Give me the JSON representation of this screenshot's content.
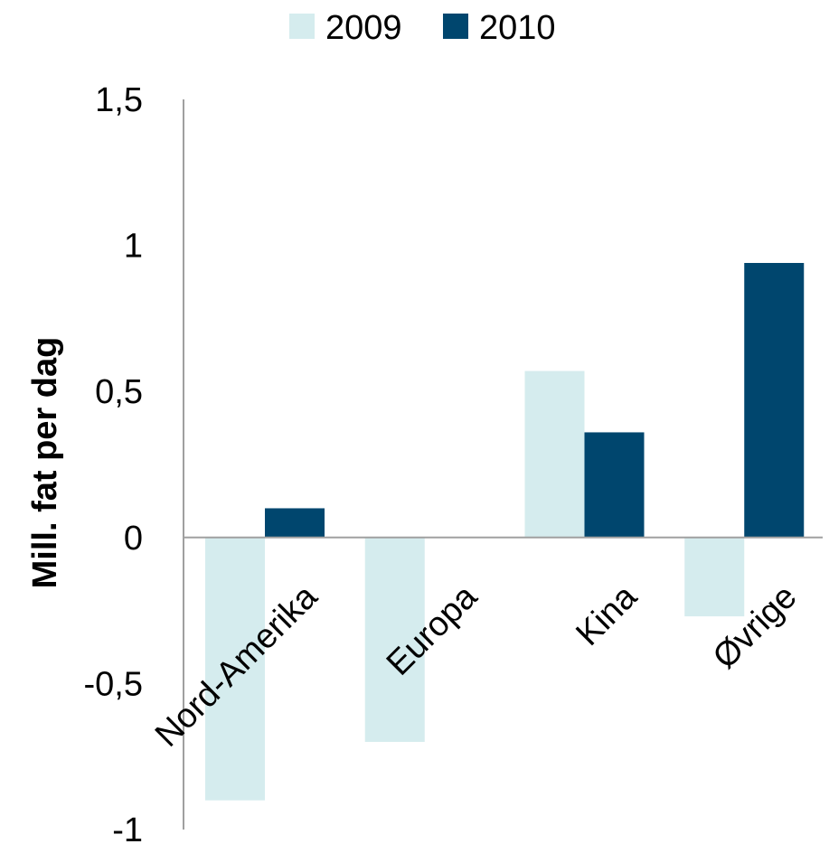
{
  "chart_data": {
    "type": "bar",
    "categories": [
      "Nord-Amerika",
      "Europa",
      "Kina",
      "Øvrige"
    ],
    "series": [
      {
        "name": "2009",
        "values": [
          -0.9,
          -0.7,
          0.57,
          -0.27
        ],
        "color": "#d5ecee"
      },
      {
        "name": "2010",
        "values": [
          0.1,
          0.0,
          0.36,
          0.94
        ],
        "color": "#00466e"
      }
    ],
    "ylabel": "Mill. fat per dag",
    "ylim": [
      -1,
      1.5
    ],
    "yticks": [
      1.5,
      1,
      0.5,
      0,
      -0.5,
      -1
    ],
    "ytick_labels": [
      "1,5",
      "1",
      "0,5",
      "0",
      "-0,5",
      "-1"
    ],
    "grid": false,
    "legend": "top-center"
  }
}
